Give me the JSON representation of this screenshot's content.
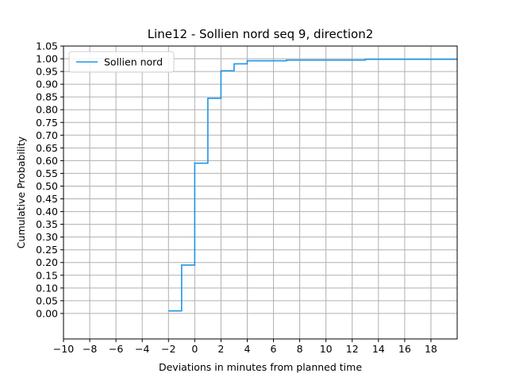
{
  "chart_data": {
    "type": "line",
    "drawstyle": "steps-post",
    "title": "Line12 - Sollien nord seq 9, direction2",
    "xlabel": "Deviations in minutes from planned time",
    "ylabel": "Cumulative Probability",
    "xlim": [
      -10,
      20
    ],
    "ylim": [
      -0.1,
      1.05
    ],
    "xticks": [
      -10,
      -8,
      -6,
      -4,
      -2,
      0,
      2,
      4,
      6,
      8,
      10,
      12,
      14,
      16,
      18
    ],
    "xtick_labels": [
      "−10",
      "−8",
      "−6",
      "−4",
      "−2",
      "0",
      "2",
      "4",
      "6",
      "8",
      "10",
      "12",
      "14",
      "16",
      "18"
    ],
    "yticks": [
      0.0,
      0.05,
      0.1,
      0.15,
      0.2,
      0.25,
      0.3,
      0.35,
      0.4,
      0.45,
      0.5,
      0.55,
      0.6,
      0.65,
      0.7,
      0.75,
      0.8,
      0.85,
      0.9,
      0.95,
      1.0,
      1.05
    ],
    "ytick_labels": [
      "0.00",
      "0.05",
      "0.10",
      "0.15",
      "0.20",
      "0.25",
      "0.30",
      "0.35",
      "0.40",
      "0.45",
      "0.50",
      "0.55",
      "0.60",
      "0.65",
      "0.70",
      "0.75",
      "0.80",
      "0.85",
      "0.90",
      "0.95",
      "1.00",
      "1.05"
    ],
    "grid": true,
    "legend_position": "top-left",
    "series": [
      {
        "name": "Sollien nord",
        "color": "#1f95e6",
        "x": [
          -2,
          -1,
          0,
          1,
          2,
          3,
          4,
          7,
          13,
          20
        ],
        "y": [
          0.01,
          0.19,
          0.59,
          0.845,
          0.953,
          0.98,
          0.992,
          0.995,
          0.998,
          0.998
        ]
      }
    ]
  }
}
